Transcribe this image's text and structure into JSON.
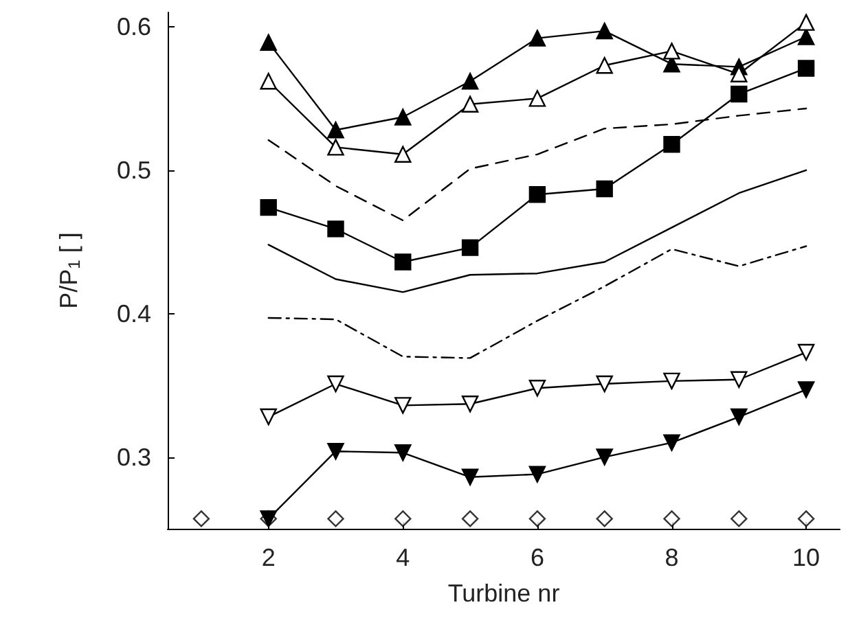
{
  "chart_data": {
    "type": "line",
    "xlabel": "Turbine nr",
    "ylabel": "P/P$_{1}$ [ ]",
    "x": [
      1,
      2,
      3,
      4,
      5,
      6,
      7,
      8,
      9,
      10
    ],
    "xlim": [
      0.5,
      10.5
    ],
    "xticks": [
      2,
      4,
      6,
      8,
      10
    ],
    "ylim": [
      0.25,
      0.61
    ],
    "yticks": [
      0.3,
      0.4,
      0.5,
      0.6
    ],
    "grid": false,
    "series": [
      {
        "color": "#000000",
        "marker": "triangle",
        "line_style": "solid",
        "values": [
          null,
          0.589,
          0.528,
          0.537,
          0.562,
          0.592,
          0.597,
          0.574,
          0.572,
          0.593
        ]
      },
      {
        "color": "#000000",
        "marker": "triangle-open",
        "line_style": "solid",
        "values": [
          null,
          0.562,
          0.516,
          0.511,
          0.546,
          0.55,
          0.573,
          0.583,
          0.567,
          0.603
        ]
      },
      {
        "color": "#000000",
        "marker": "none",
        "line_style": "dashed",
        "values": [
          null,
          0.521,
          0.489,
          0.465,
          0.501,
          0.511,
          0.529,
          0.532,
          0.538,
          0.543
        ]
      },
      {
        "color": "#000000",
        "marker": "square",
        "line_style": "solid",
        "values": [
          null,
          0.474,
          0.459,
          0.436,
          0.446,
          0.483,
          0.487,
          0.518,
          0.553,
          0.571
        ]
      },
      {
        "color": "#000000",
        "marker": "none",
        "line_style": "solid",
        "values": [
          null,
          0.448,
          0.424,
          0.415,
          0.427,
          0.428,
          0.436,
          0.46,
          0.484,
          0.5
        ]
      },
      {
        "color": "#000000",
        "marker": "none",
        "line_style": "dashdot",
        "values": [
          null,
          0.397,
          0.396,
          0.37,
          0.369,
          0.395,
          0.419,
          0.445,
          0.433,
          0.447
        ]
      },
      {
        "color": "#000000",
        "marker": "triangle-down-open",
        "line_style": "solid",
        "values": [
          null,
          0.328,
          0.351,
          0.336,
          0.337,
          0.348,
          0.351,
          0.353,
          0.354,
          0.373
        ]
      },
      {
        "color": "#000000",
        "marker": "triangle-down",
        "line_style": "solid",
        "values": [
          null,
          0.257,
          0.304,
          0.303,
          0.286,
          0.288,
          0.3,
          0.31,
          0.328,
          0.347
        ]
      },
      {
        "type": "scatter",
        "color": "#000000",
        "marker": "diamond-open",
        "values": [
          0.257,
          0.257,
          0.257,
          0.257,
          0.257,
          0.257,
          0.257,
          0.257,
          0.257,
          0.257
        ]
      }
    ]
  }
}
